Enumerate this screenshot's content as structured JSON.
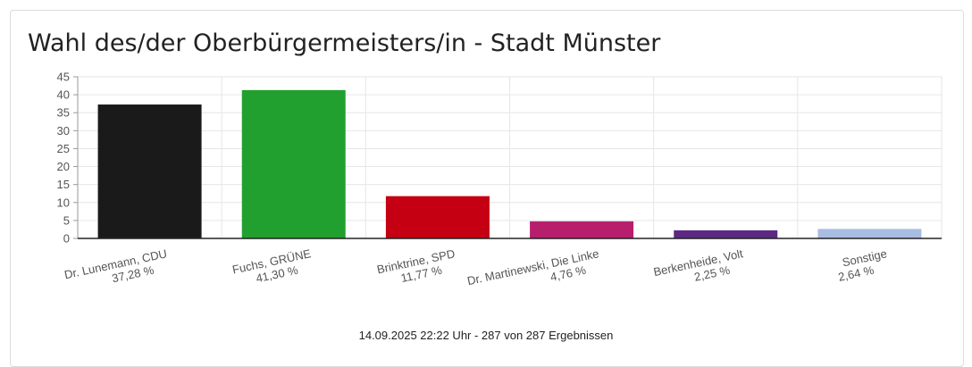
{
  "title": "Wahl des/der Oberbürgermeisters/in - Stadt Münster",
  "footer": "14.09.2025 22:22 Uhr - 287 von 287 Ergebnissen",
  "chart_data": {
    "type": "bar",
    "title": "Wahl des/der Oberbürgermeisters/in - Stadt Münster",
    "categories": [
      {
        "name": "Dr. Lunemann, CDU",
        "pct_label": "37,28 %"
      },
      {
        "name": "Fuchs, GRÜNE",
        "pct_label": "41,30 %"
      },
      {
        "name": "Brinktrine, SPD",
        "pct_label": "11,77 %"
      },
      {
        "name": "Dr. Martinewski, Die Linke",
        "pct_label": "4,76 %"
      },
      {
        "name": "Berkenheide, Volt",
        "pct_label": "2,25 %"
      },
      {
        "name": "Sonstige",
        "pct_label": "2,64 %"
      }
    ],
    "values": [
      37.28,
      41.3,
      11.77,
      4.76,
      2.25,
      2.64
    ],
    "colors": [
      "#1a1a1a",
      "#22a02f",
      "#c40012",
      "#b71f6d",
      "#5b2983",
      "#a9bde3"
    ],
    "ylim": [
      0,
      45
    ],
    "yticks": [
      0,
      5,
      10,
      15,
      20,
      25,
      30,
      35,
      40,
      45
    ],
    "grid": true,
    "xlabel": "",
    "ylabel": ""
  }
}
